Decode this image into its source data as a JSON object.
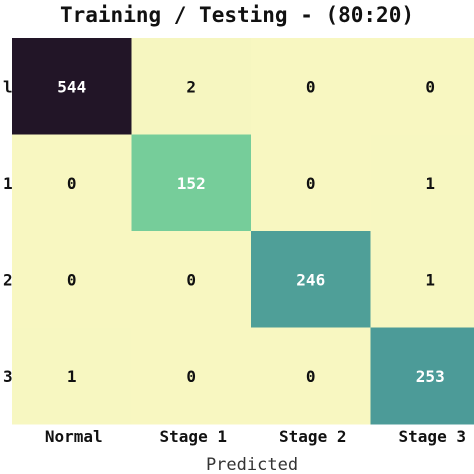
{
  "chart_data": {
    "type": "heatmap",
    "title": "Training / Testing - (80:20)",
    "xlabel": "Predicted",
    "ylabel": "",
    "x_tick_labels": [
      "Normal",
      "Stage 1",
      "Stage 2",
      "Stage 3"
    ],
    "y_tick_labels": [
      "l",
      "1",
      "2",
      "3"
    ],
    "matrix": [
      [
        544,
        2,
        0,
        0
      ],
      [
        0,
        152,
        0,
        1
      ],
      [
        0,
        0,
        246,
        1
      ],
      [
        1,
        0,
        0,
        253
      ]
    ],
    "color_scale": {
      "low": "#f8f7c1",
      "mid": "#76cd9a",
      "high": "#4b9a98",
      "max": "#221527"
    },
    "colors": {
      "dark_text": "#111111",
      "light_text": "#ffffff"
    }
  }
}
